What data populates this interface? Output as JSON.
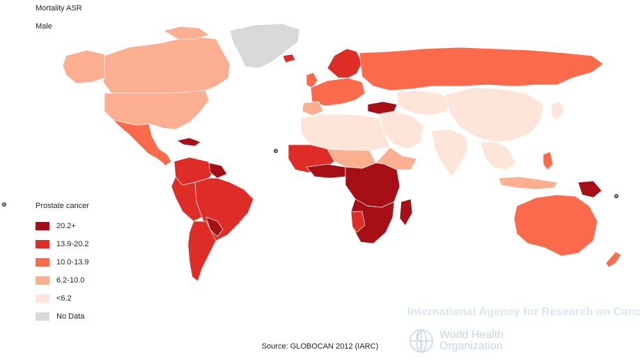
{
  "map": {
    "title": "Mortality ASR",
    "subtitle": "Male",
    "legend": {
      "title": "Prostate cancer",
      "items": [
        {
          "label": "20.2+",
          "color": "#a50f15"
        },
        {
          "label": "13.9-20.2",
          "color": "#de2d26"
        },
        {
          "label": "10.0-13.9",
          "color": "#fb6a4a"
        },
        {
          "label": "6.2-10.0",
          "color": "#fcae91"
        },
        {
          "label": "<6.2",
          "color": "#fee5d9"
        },
        {
          "label": "No Data",
          "color": "#d9d9d9"
        }
      ]
    },
    "source": "Source: GLOBOCAN 2012 (IARC)",
    "agency": "International Agency for Research on Cancer",
    "who_name_line1": "World Health",
    "who_name_line2": "Organization"
  }
}
